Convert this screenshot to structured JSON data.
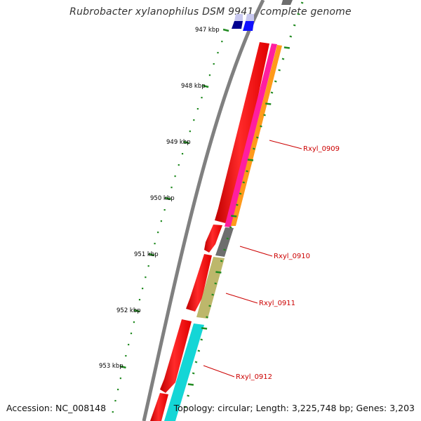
{
  "title": "Rubrobacter xylanophilus DSM 9941, complete genome",
  "footer": {
    "accession": "Accession: NC_008148",
    "summary": "Topology: circular; Length: 3,225,748 bp; Genes: 3,203"
  },
  "scale_ticks": [
    {
      "label": "947 kbp"
    },
    {
      "label": "948 kbp"
    },
    {
      "label": "949 kbp"
    },
    {
      "label": "950 kbp"
    },
    {
      "label": "951 kbp"
    },
    {
      "label": "952 kbp"
    },
    {
      "label": "953 kbp"
    }
  ],
  "gene_labels": [
    "Rxyl_0909",
    "Rxyl_0910",
    "Rxyl_0911",
    "Rxyl_0912"
  ],
  "colors": {
    "backbone": "#808080",
    "cds": "#ff0000",
    "magenta_track": "#ff1f9f",
    "orange_track": "#ff9a1a",
    "gray_track": "#6e6e6e",
    "olive_track": "#bdb76b",
    "cyan_track": "#14d6d6",
    "blue_track": "#1010ff",
    "navy_track": "#000090",
    "tick": "#228b22",
    "label": "#cc0000"
  }
}
